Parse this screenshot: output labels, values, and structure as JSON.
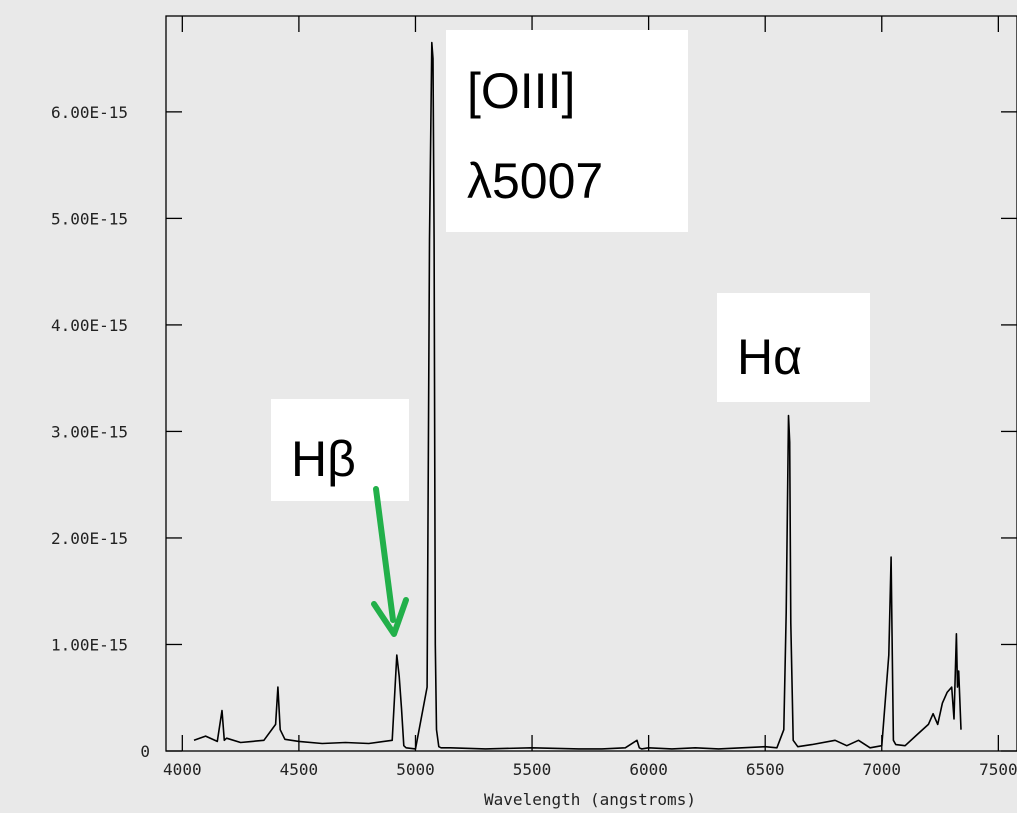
{
  "chart_data": {
    "type": "line",
    "title": "",
    "xlabel": "Wavelength (angstroms)",
    "ylabel": "",
    "xlim": [
      3930,
      7580
    ],
    "ylim": [
      0,
      6.9e-15
    ],
    "x_ticks": [
      {
        "value": 4000,
        "label": "4000"
      },
      {
        "value": 4500,
        "label": "4500"
      },
      {
        "value": 5000,
        "label": "5000"
      },
      {
        "value": 5500,
        "label": "5500"
      },
      {
        "value": 6000,
        "label": "6000"
      },
      {
        "value": 6500,
        "label": "6500"
      },
      {
        "value": 7000,
        "label": "7000"
      },
      {
        "value": 7500,
        "label": "7500"
      }
    ],
    "y_ticks": [
      {
        "value": 0,
        "label": "0"
      },
      {
        "value": 1e-15,
        "label": "1.00E-15"
      },
      {
        "value": 2e-15,
        "label": "2.00E-15"
      },
      {
        "value": 3e-15,
        "label": "3.00E-15"
      },
      {
        "value": 4e-15,
        "label": "4.00E-15"
      },
      {
        "value": 5e-15,
        "label": "5.00E-15"
      },
      {
        "value": 6e-15,
        "label": "6.00E-15"
      }
    ],
    "series": [
      {
        "color": "#000000",
        "x": [
          4050,
          4100,
          4150,
          4170,
          4180,
          4190,
          4250,
          4300,
          4350,
          4400,
          4410,
          4420,
          4440,
          4500,
          4600,
          4700,
          4800,
          4900,
          4920,
          4930,
          4940,
          4950,
          4960,
          5000,
          5050,
          5060,
          5070,
          5075,
          5080,
          5085,
          5090,
          5100,
          5110,
          5150,
          5300,
          5500,
          5700,
          5800,
          5900,
          5950,
          5960,
          5970,
          6000,
          6100,
          6200,
          6300,
          6400,
          6500,
          6550,
          6580,
          6590,
          6600,
          6605,
          6610,
          6620,
          6640,
          6700,
          6800,
          6850,
          6900,
          6950,
          7000,
          7030,
          7040,
          7045,
          7050,
          7060,
          7100,
          7150,
          7200,
          7220,
          7240,
          7260,
          7280,
          7300,
          7310,
          7320,
          7325,
          7330,
          7340
        ],
        "y": [
          1e-16,
          1.4e-16,
          9e-17,
          3.8e-16,
          1e-16,
          1.2e-16,
          8e-17,
          9e-17,
          1e-16,
          2.5e-16,
          6e-16,
          2e-16,
          1.1e-16,
          9e-17,
          7e-17,
          8e-17,
          7e-17,
          1e-16,
          9e-16,
          7e-16,
          4e-16,
          5e-17,
          3e-17,
          2e-17,
          6e-16,
          4.8e-15,
          6.65e-15,
          6.5e-15,
          4.8e-15,
          1e-15,
          2e-16,
          4e-17,
          3e-17,
          3e-17,
          2e-17,
          3e-17,
          2e-17,
          2e-17,
          3e-17,
          1e-16,
          3e-17,
          2e-17,
          3e-17,
          2e-17,
          3e-17,
          2e-17,
          3e-17,
          4e-17,
          3e-17,
          2e-16,
          1.3e-15,
          3.15e-15,
          2.9e-15,
          1.2e-15,
          1e-16,
          4e-17,
          6e-17,
          1e-16,
          5e-17,
          1e-16,
          3e-17,
          5e-17,
          9e-16,
          1.82e-15,
          9e-16,
          1e-16,
          6e-17,
          5e-17,
          1.5e-16,
          2.5e-16,
          3.5e-16,
          2.5e-16,
          4.5e-16,
          5.5e-16,
          6e-16,
          3e-16,
          1.1e-15,
          6e-16,
          7.5e-16,
          2e-16
        ]
      }
    ],
    "annotations": [
      {
        "line1": "[OIII]",
        "line2": "λ5007"
      },
      {
        "line1": "Hα"
      },
      {
        "line1": "Hβ"
      }
    ],
    "arrow_color": "#22b04a"
  }
}
